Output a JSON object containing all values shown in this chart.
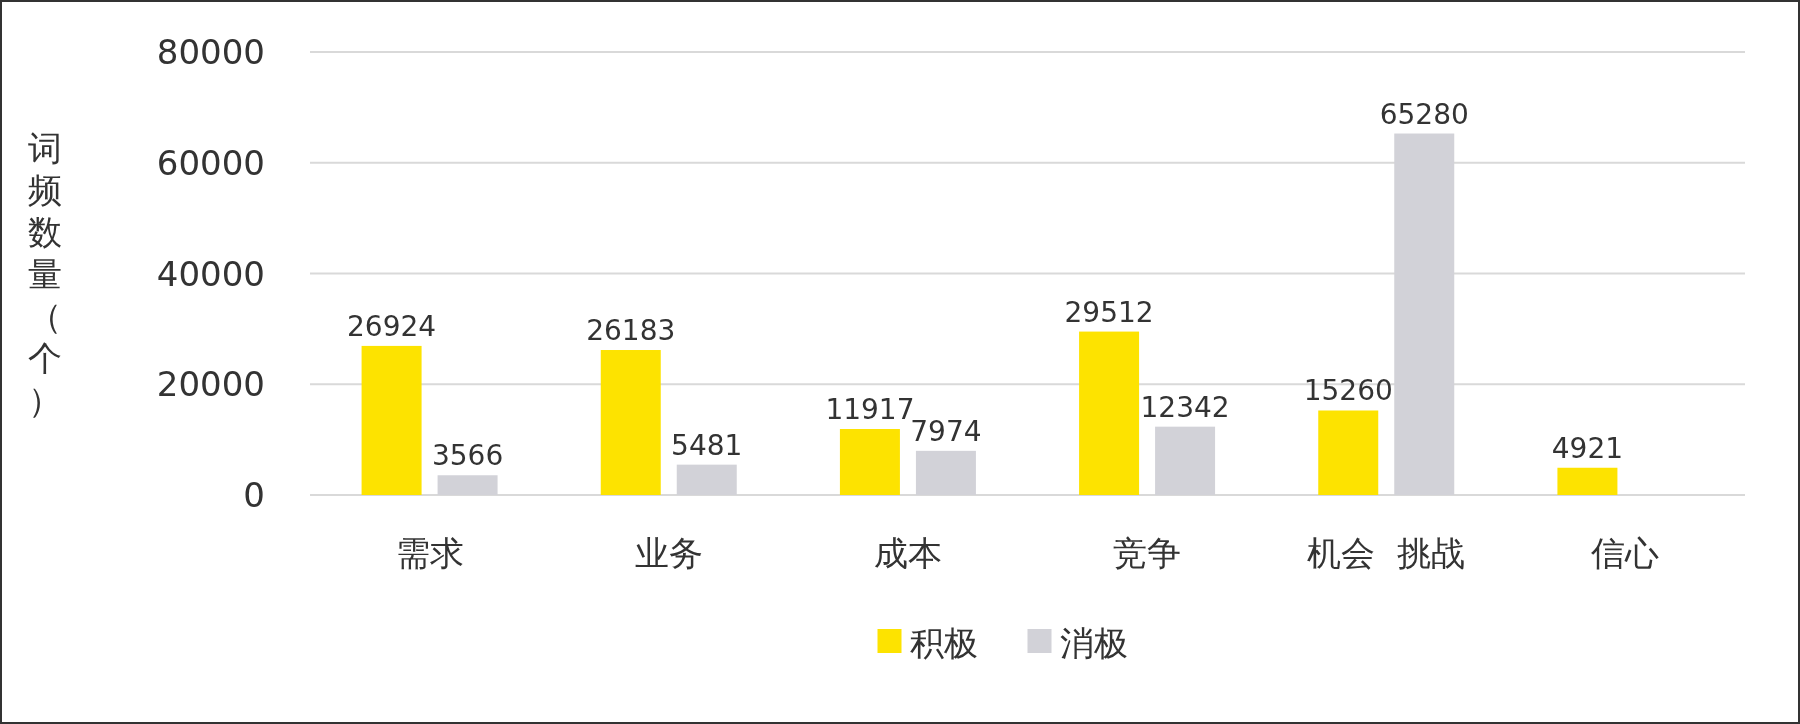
{
  "chart_data": {
    "type": "bar",
    "ylabel": "词频数量（个）",
    "categories": [
      "需求",
      "业务",
      "成本",
      "竞争",
      "机会  挑战",
      "信心"
    ],
    "series": [
      {
        "name": "积极",
        "color": "#fde300",
        "values": [
          26924,
          26183,
          11917,
          29512,
          15260,
          4921
        ]
      },
      {
        "name": "消极",
        "color": "#d2d2d8",
        "values": [
          3566,
          5481,
          7974,
          12342,
          65280,
          null
        ]
      }
    ],
    "ylim": [
      0,
      80000
    ],
    "yticks": [
      0,
      20000,
      40000,
      60000,
      80000
    ],
    "grid": "y",
    "legend": "bottom",
    "data_labels": true
  }
}
